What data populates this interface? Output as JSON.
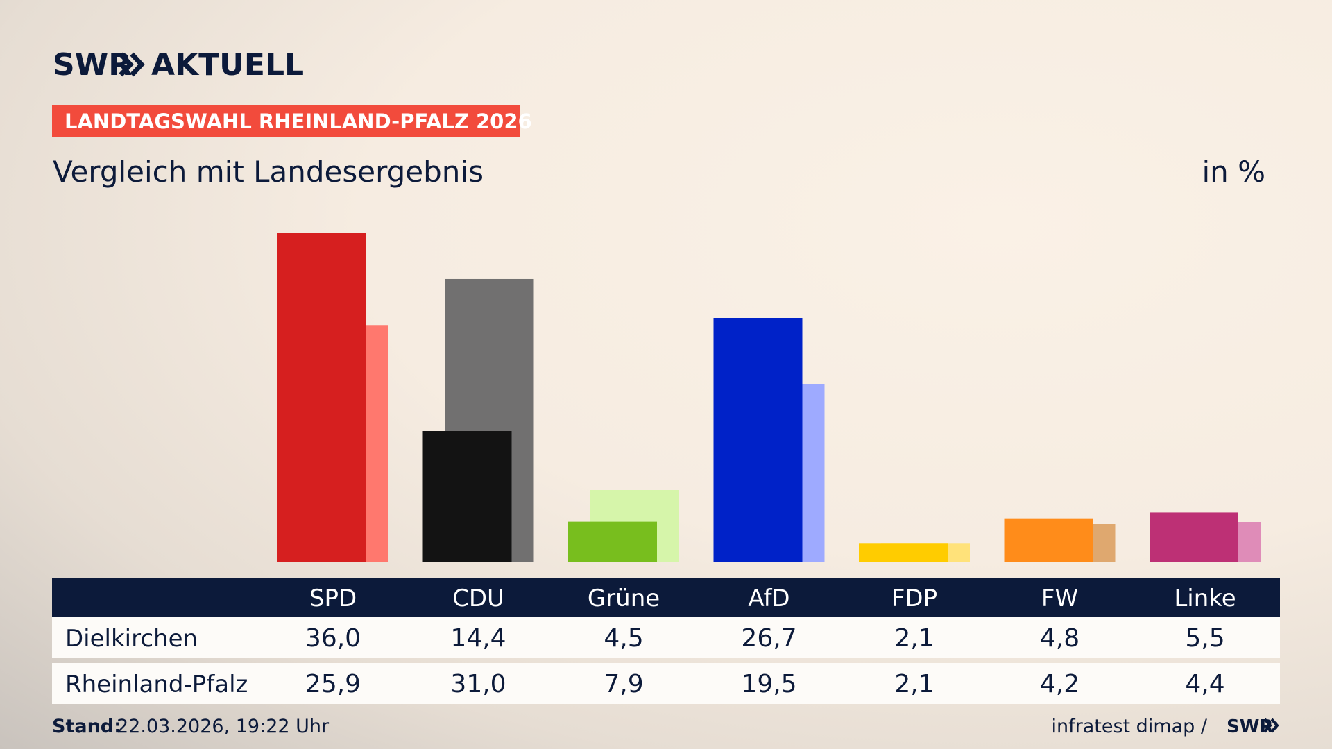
{
  "header": {
    "logo": "SWR",
    "logo_suffix": "AKTUELL"
  },
  "chart_data": {
    "type": "bar",
    "title": "LANDTAGSWAHL RHEINLAND-PFALZ 2026",
    "subtitle": "Vergleich mit Landesergebnis",
    "unit": "in %",
    "categories": [
      "SPD",
      "CDU",
      "Grüne",
      "AfD",
      "FDP",
      "FW",
      "Linke"
    ],
    "series": [
      {
        "name": "Dielkirchen",
        "colors": [
          "#d61f1f",
          "#131313",
          "#78be1e",
          "#0022c8",
          "#ffcc00",
          "#ff8c1a",
          "#bd3075"
        ],
        "values": [
          36.0,
          14.4,
          4.5,
          26.7,
          2.1,
          4.8,
          5.5
        ],
        "value_labels": [
          "36,0",
          "14,4",
          "4,5",
          "26,7",
          "2,1",
          "4,8",
          "5,5"
        ]
      },
      {
        "name": "Rheinland-Pfalz",
        "colors": [
          "#ff786e",
          "#717070",
          "#d6f5aa",
          "#9eaaff",
          "#ffe27a",
          "#dfa86f",
          "#df8cb8"
        ],
        "values": [
          25.9,
          31.0,
          7.9,
          19.5,
          2.1,
          4.2,
          4.4
        ],
        "value_labels": [
          "25,9",
          "31,0",
          "7,9",
          "19,5",
          "2,1",
          "4,2",
          "4,4"
        ]
      }
    ]
  },
  "footer": {
    "stand_label": "Stand:",
    "stand": "22.03.2026, 19:22 Uhr",
    "source": "infratest dimap /",
    "source_logo": "SWR"
  }
}
